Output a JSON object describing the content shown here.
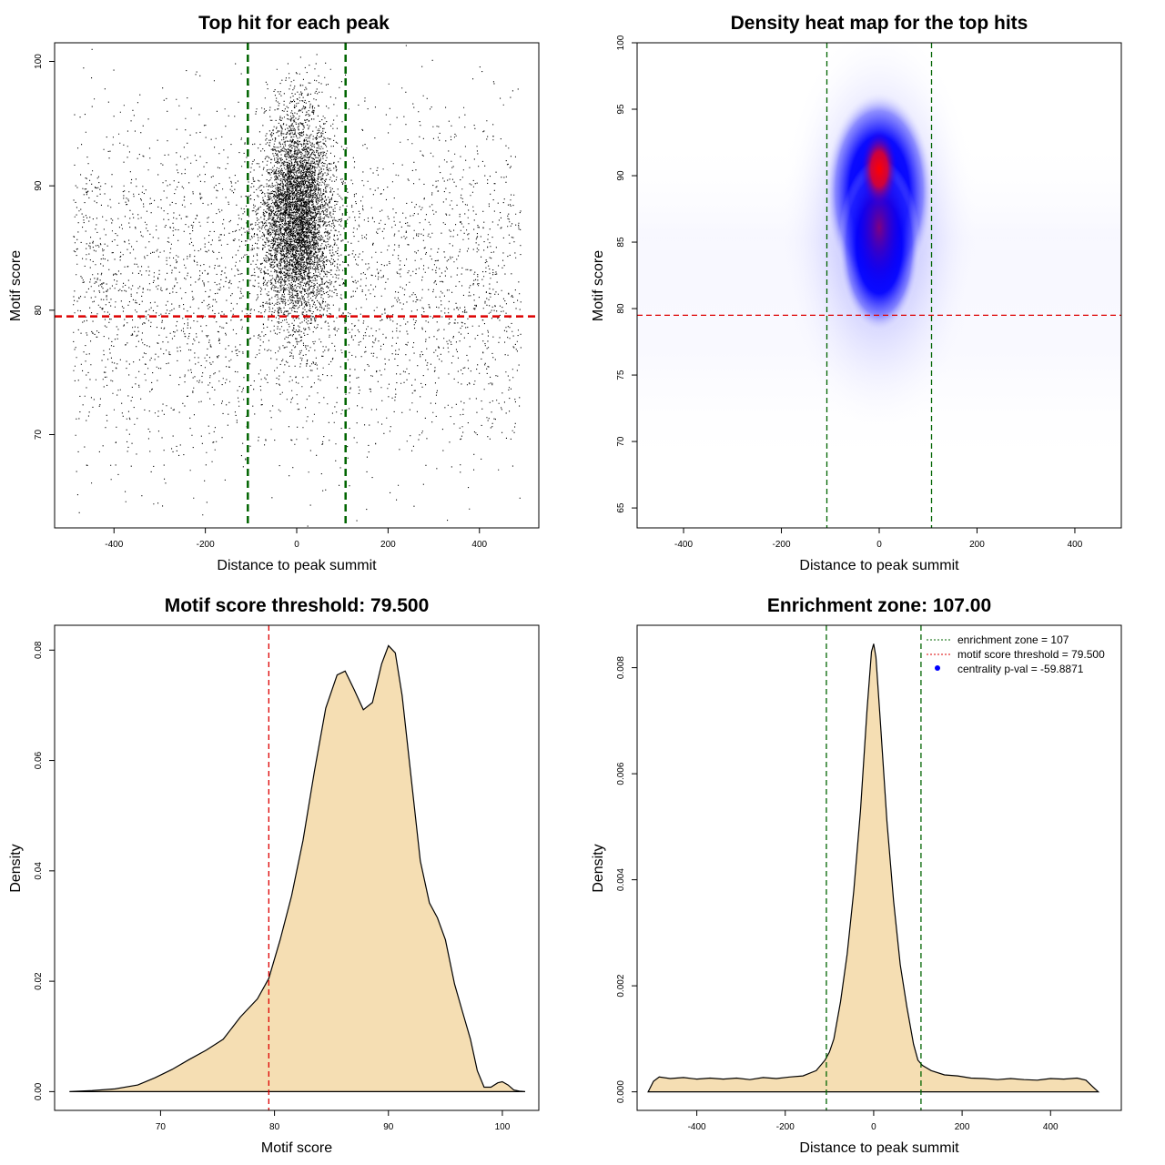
{
  "chart_data": [
    {
      "id": "p1",
      "type": "scatter",
      "title": "Top hit for each peak",
      "xlabel": "Distance to peak summit",
      "ylabel": "Motif score",
      "xlim": [
        -530,
        530
      ],
      "ylim": [
        62.5,
        101.5
      ],
      "xticks": [
        -400,
        -200,
        0,
        200,
        400
      ],
      "yticks": [
        70,
        80,
        90,
        100
      ],
      "point_count": 9000,
      "central_cluster": {
        "x_center": 0,
        "x_sd": 38,
        "y_center": 87.5,
        "y_sd": 4.2
      },
      "background": {
        "x_range": [
          -490,
          490
        ],
        "y_center": 82,
        "y_sd": 7
      },
      "vlines": [
        {
          "x": -107,
          "color": "#006400",
          "style": "dashed"
        },
        {
          "x": 107,
          "color": "#006400",
          "style": "dashed"
        }
      ],
      "hlines": [
        {
          "y": 79.5,
          "color": "#dd0000",
          "style": "dashed"
        }
      ]
    },
    {
      "id": "p2",
      "type": "heatmap",
      "title": "Density heat map for the top hits",
      "xlabel": "Distance to peak summit",
      "ylabel": "Motif score",
      "xlim": [
        -495,
        495
      ],
      "ylim": [
        63.5,
        100
      ],
      "xticks": [
        -400,
        -200,
        0,
        200,
        400
      ],
      "yticks": [
        65,
        70,
        75,
        80,
        85,
        90,
        95,
        100
      ],
      "hotspot": {
        "x": 0,
        "y": 90.5
      },
      "colormap": [
        "#ffffff",
        "#0000ff",
        "#ff0000"
      ],
      "vlines": [
        {
          "x": -107,
          "color": "#006400",
          "style": "dashed"
        },
        {
          "x": 107,
          "color": "#006400",
          "style": "dashed"
        }
      ],
      "hlines": [
        {
          "y": 79.5,
          "color": "#dd0000",
          "style": "dashed"
        }
      ]
    },
    {
      "id": "p3",
      "type": "area",
      "title": "Motif score threshold: 79.500",
      "xlabel": "Motif score",
      "ylabel": "Density",
      "xlim": [
        60.7,
        103.2
      ],
      "ylim": [
        -0.0034,
        0.0845
      ],
      "xticks": [
        70,
        80,
        90,
        100
      ],
      "yticks": [
        0.0,
        0.02,
        0.04,
        0.06,
        0.08
      ],
      "ytick_labels": [
        "0.00",
        "0.02",
        "0.04",
        "0.06",
        "0.08"
      ],
      "fill": "#f5deb3",
      "x": [
        62,
        64,
        66,
        68,
        69.5,
        71,
        72.5,
        74,
        75.5,
        77,
        78.5,
        79.5,
        80.5,
        81.5,
        82.5,
        83.5,
        84.5,
        85.5,
        86.2,
        87,
        87.8,
        88.6,
        89.4,
        90,
        90.6,
        91.2,
        92,
        92.8,
        93.6,
        94.3,
        95,
        95.8,
        96.5,
        97.2,
        97.8,
        98.4,
        99,
        99.6,
        100,
        100.5,
        101,
        101.5,
        102
      ],
      "y": [
        0,
        0.0002,
        0.0005,
        0.0012,
        0.0025,
        0.004,
        0.0058,
        0.0075,
        0.0095,
        0.0135,
        0.0168,
        0.0205,
        0.0275,
        0.0355,
        0.0455,
        0.058,
        0.0695,
        0.0755,
        0.0762,
        0.0728,
        0.0692,
        0.0705,
        0.0775,
        0.0808,
        0.0795,
        0.0718,
        0.0568,
        0.0418,
        0.0342,
        0.0315,
        0.0275,
        0.0195,
        0.0145,
        0.0095,
        0.0038,
        0.0008,
        0.0008,
        0.0016,
        0.0018,
        0.0012,
        0.0003,
        0.0001,
        0
      ],
      "vlines": [
        {
          "x": 79.5,
          "color": "#dd0000",
          "style": "dashed"
        }
      ]
    },
    {
      "id": "p4",
      "type": "area",
      "title": "Enrichment zone: 107.00",
      "xlabel": "Distance to peak summit",
      "ylabel": "Density",
      "xlim": [
        -535,
        560
      ],
      "ylim": [
        -0.00035,
        0.0088
      ],
      "xticks": [
        -400,
        -200,
        0,
        200,
        400
      ],
      "yticks": [
        0.0,
        0.002,
        0.004,
        0.006,
        0.008
      ],
      "ytick_labels": [
        "0.000",
        "0.002",
        "0.004",
        "0.006",
        "0.008"
      ],
      "fill": "#f5deb3",
      "x": [
        -510,
        -498,
        -485,
        -460,
        -430,
        -400,
        -370,
        -340,
        -310,
        -280,
        -250,
        -220,
        -190,
        -160,
        -130,
        -110,
        -100,
        -90,
        -75,
        -60,
        -45,
        -30,
        -15,
        -5,
        0,
        5,
        15,
        30,
        45,
        60,
        75,
        90,
        100,
        110,
        130,
        160,
        190,
        220,
        250,
        280,
        310,
        340,
        370,
        400,
        430,
        460,
        480,
        495,
        508
      ],
      "y": [
        0.0,
        0.0002,
        0.00028,
        0.00025,
        0.00027,
        0.00024,
        0.00026,
        0.00024,
        0.00026,
        0.00023,
        0.00027,
        0.00025,
        0.00028,
        0.0003,
        0.0004,
        0.0006,
        0.00075,
        0.001,
        0.0017,
        0.0026,
        0.0038,
        0.0053,
        0.0072,
        0.0083,
        0.00845,
        0.0082,
        0.007,
        0.0051,
        0.0036,
        0.0024,
        0.0016,
        0.0009,
        0.0006,
        0.0005,
        0.0004,
        0.00032,
        0.0003,
        0.00026,
        0.00025,
        0.00023,
        0.00025,
        0.00023,
        0.00022,
        0.00025,
        0.00024,
        0.00026,
        0.00022,
        0.0001,
        0.0
      ],
      "vlines": [
        {
          "x": -107,
          "color": "#006400",
          "style": "dashed"
        },
        {
          "x": 107,
          "color": "#006400",
          "style": "dashed"
        }
      ],
      "legend": {
        "position": "top-right",
        "items": [
          {
            "label": "enrichment zone = 107",
            "color": "#006400",
            "kind": "dotted-line"
          },
          {
            "label": "motif score threshold = 79.500",
            "color": "#dd0000",
            "kind": "dotted-line"
          },
          {
            "label": "centrality p-val = -59.8871",
            "color": "#0000ff",
            "kind": "point"
          }
        ]
      }
    }
  ]
}
